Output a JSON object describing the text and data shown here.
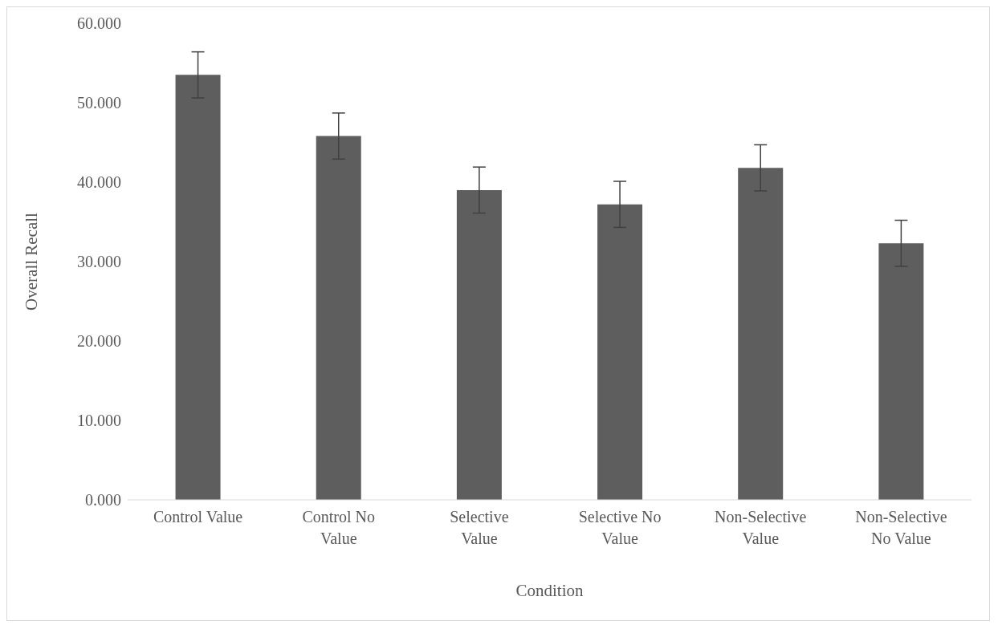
{
  "chart_data": {
    "type": "bar",
    "xlabel": "Condition",
    "ylabel": "Overall Recall",
    "categories": [
      "Control Value",
      "Control No Value",
      "Selective Value",
      "Selective No Value",
      "Non-Selective Value",
      "Non-Selective No Value"
    ],
    "values": [
      53.5,
      45.8,
      39.0,
      37.2,
      41.8,
      32.3
    ],
    "errors": [
      2.9,
      2.9,
      2.9,
      2.9,
      2.9,
      2.9
    ],
    "color": "#5e5e5e",
    "ylim": [
      0,
      60
    ],
    "yticks": [
      {
        "value": 0,
        "label": "0.000"
      },
      {
        "value": 10,
        "label": "10.000"
      },
      {
        "value": 20,
        "label": "20.000"
      },
      {
        "value": 30,
        "label": "30.000"
      },
      {
        "value": 40,
        "label": "40.000"
      },
      {
        "value": 50,
        "label": "50.000"
      },
      {
        "value": 60,
        "label": "60.000"
      }
    ],
    "grid": false,
    "legend": false
  }
}
